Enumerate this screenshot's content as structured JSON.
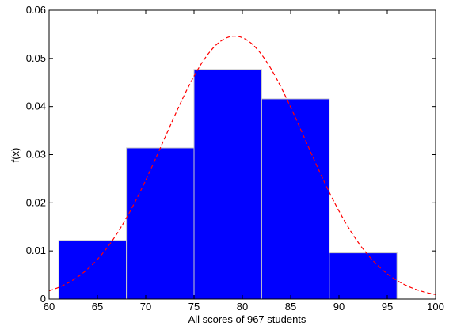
{
  "chart_data": {
    "type": "bar",
    "subtype": "histogram-with-density-curve",
    "title": "",
    "xlabel": "All scores of 967 students",
    "ylabel": "f(x)",
    "xlim": [
      60,
      100
    ],
    "ylim": [
      0,
      0.06
    ],
    "xticks": [
      "60",
      "65",
      "70",
      "75",
      "80",
      "85",
      "90",
      "95",
      "100"
    ],
    "yticks": [
      "0",
      "0.01",
      "0.02",
      "0.03",
      "0.04",
      "0.05",
      "0.06"
    ],
    "grid": false,
    "legend": "none",
    "bins": [
      {
        "x0": 61,
        "x1": 68,
        "value": 0.0122
      },
      {
        "x0": 68,
        "x1": 75,
        "value": 0.0314
      },
      {
        "x0": 75,
        "x1": 82,
        "value": 0.0477
      },
      {
        "x0": 82,
        "x1": 89,
        "value": 0.0416
      },
      {
        "x0": 89,
        "x1": 96,
        "value": 0.0096
      }
    ],
    "curve": {
      "type": "normal-pdf",
      "mean": 79.2,
      "sd": 7.3,
      "x_range": [
        60,
        100
      ],
      "style": "dashed"
    },
    "colors": {
      "bars": "#0000ff",
      "bar_edge": "#c8c8c8",
      "curve": "#ff0000",
      "axes": "#000000"
    }
  }
}
